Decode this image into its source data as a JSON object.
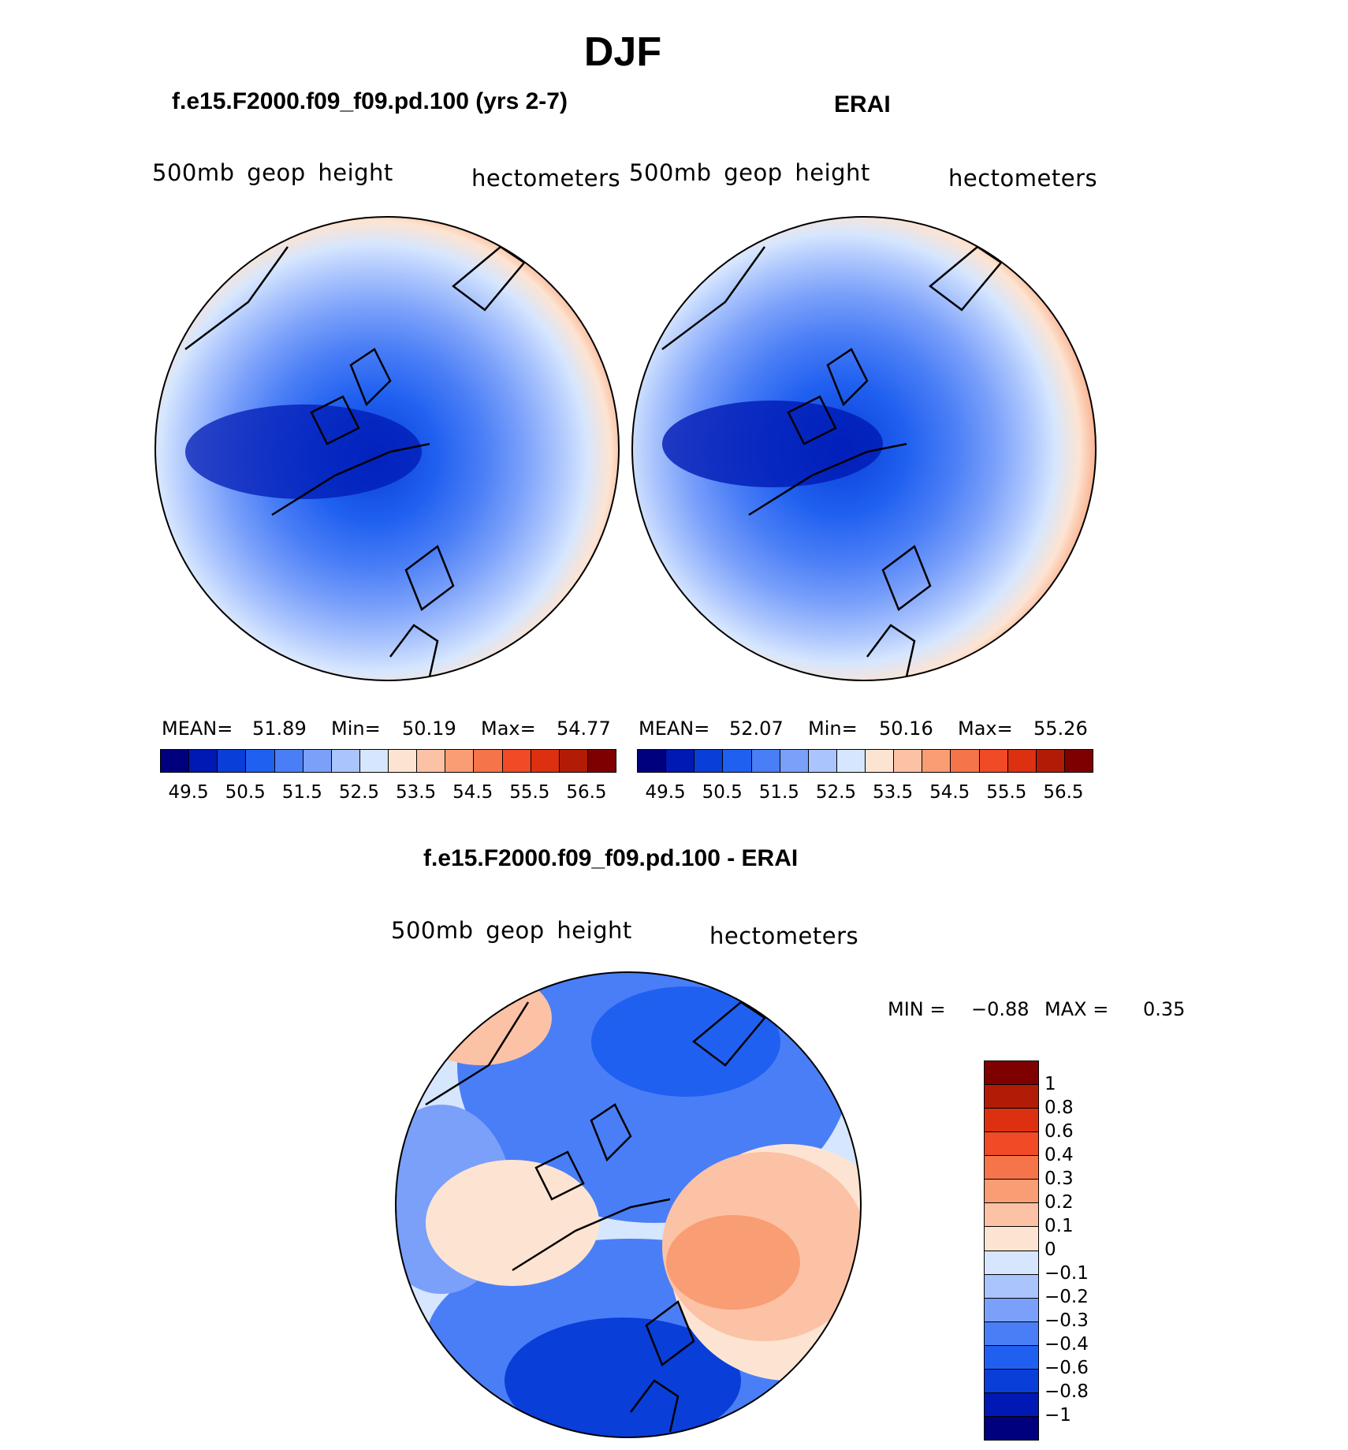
{
  "title": "DJF",
  "panels": {
    "left": {
      "title": "f.e15.F2000.f09_f09.pd.100 (yrs 2-7)",
      "variable": "500mb geop height",
      "units": "hectometers",
      "mean_label": "MEAN=",
      "mean": "51.89",
      "min_label": "Min=",
      "min": "50.19",
      "max_label": "Max=",
      "max": "54.77"
    },
    "right": {
      "title": "ERAI",
      "variable": "500mb geop height",
      "units": "hectometers",
      "mean_label": "MEAN=",
      "mean": "52.07",
      "min_label": "Min=",
      "min": "50.16",
      "max_label": "Max=",
      "max": "55.26"
    },
    "diff": {
      "title": "f.e15.F2000.f09_f09.pd.100 - ERAI",
      "variable": "500mb geop height",
      "units": "hectometers",
      "min_label": "MIN =",
      "min": "−0.88",
      "max_label": "MAX =",
      "max": "0.35"
    }
  },
  "abs_colorbar": {
    "colors": [
      "#00007f",
      "#0019b4",
      "#0a3ed8",
      "#2060f0",
      "#4a7ef6",
      "#7aa0fa",
      "#aac4fd",
      "#d6e6fe",
      "#fde4d2",
      "#fcc2a6",
      "#f99d74",
      "#f5744a",
      "#f04a26",
      "#dc3010",
      "#b21c06",
      "#7f0000"
    ],
    "tick_labels": [
      "49.5",
      "50.5",
      "51.5",
      "52.5",
      "53.5",
      "54.5",
      "55.5",
      "56.5"
    ]
  },
  "diff_colorbar": {
    "colors": [
      "#7f0000",
      "#b21c06",
      "#dc3010",
      "#f04a26",
      "#f5744a",
      "#f99d74",
      "#fcc2a6",
      "#fde4d2",
      "#d6e6fe",
      "#aac4fd",
      "#7aa0fa",
      "#4a7ef6",
      "#2060f0",
      "#0a3ed8",
      "#0019b4",
      "#00007f"
    ],
    "tick_labels": [
      "1",
      "0.8",
      "0.6",
      "0.4",
      "0.3",
      "0.2",
      "0.1",
      "0",
      "−0.1",
      "−0.2",
      "−0.3",
      "−0.4",
      "−0.6",
      "−0.8",
      "−1"
    ]
  }
}
